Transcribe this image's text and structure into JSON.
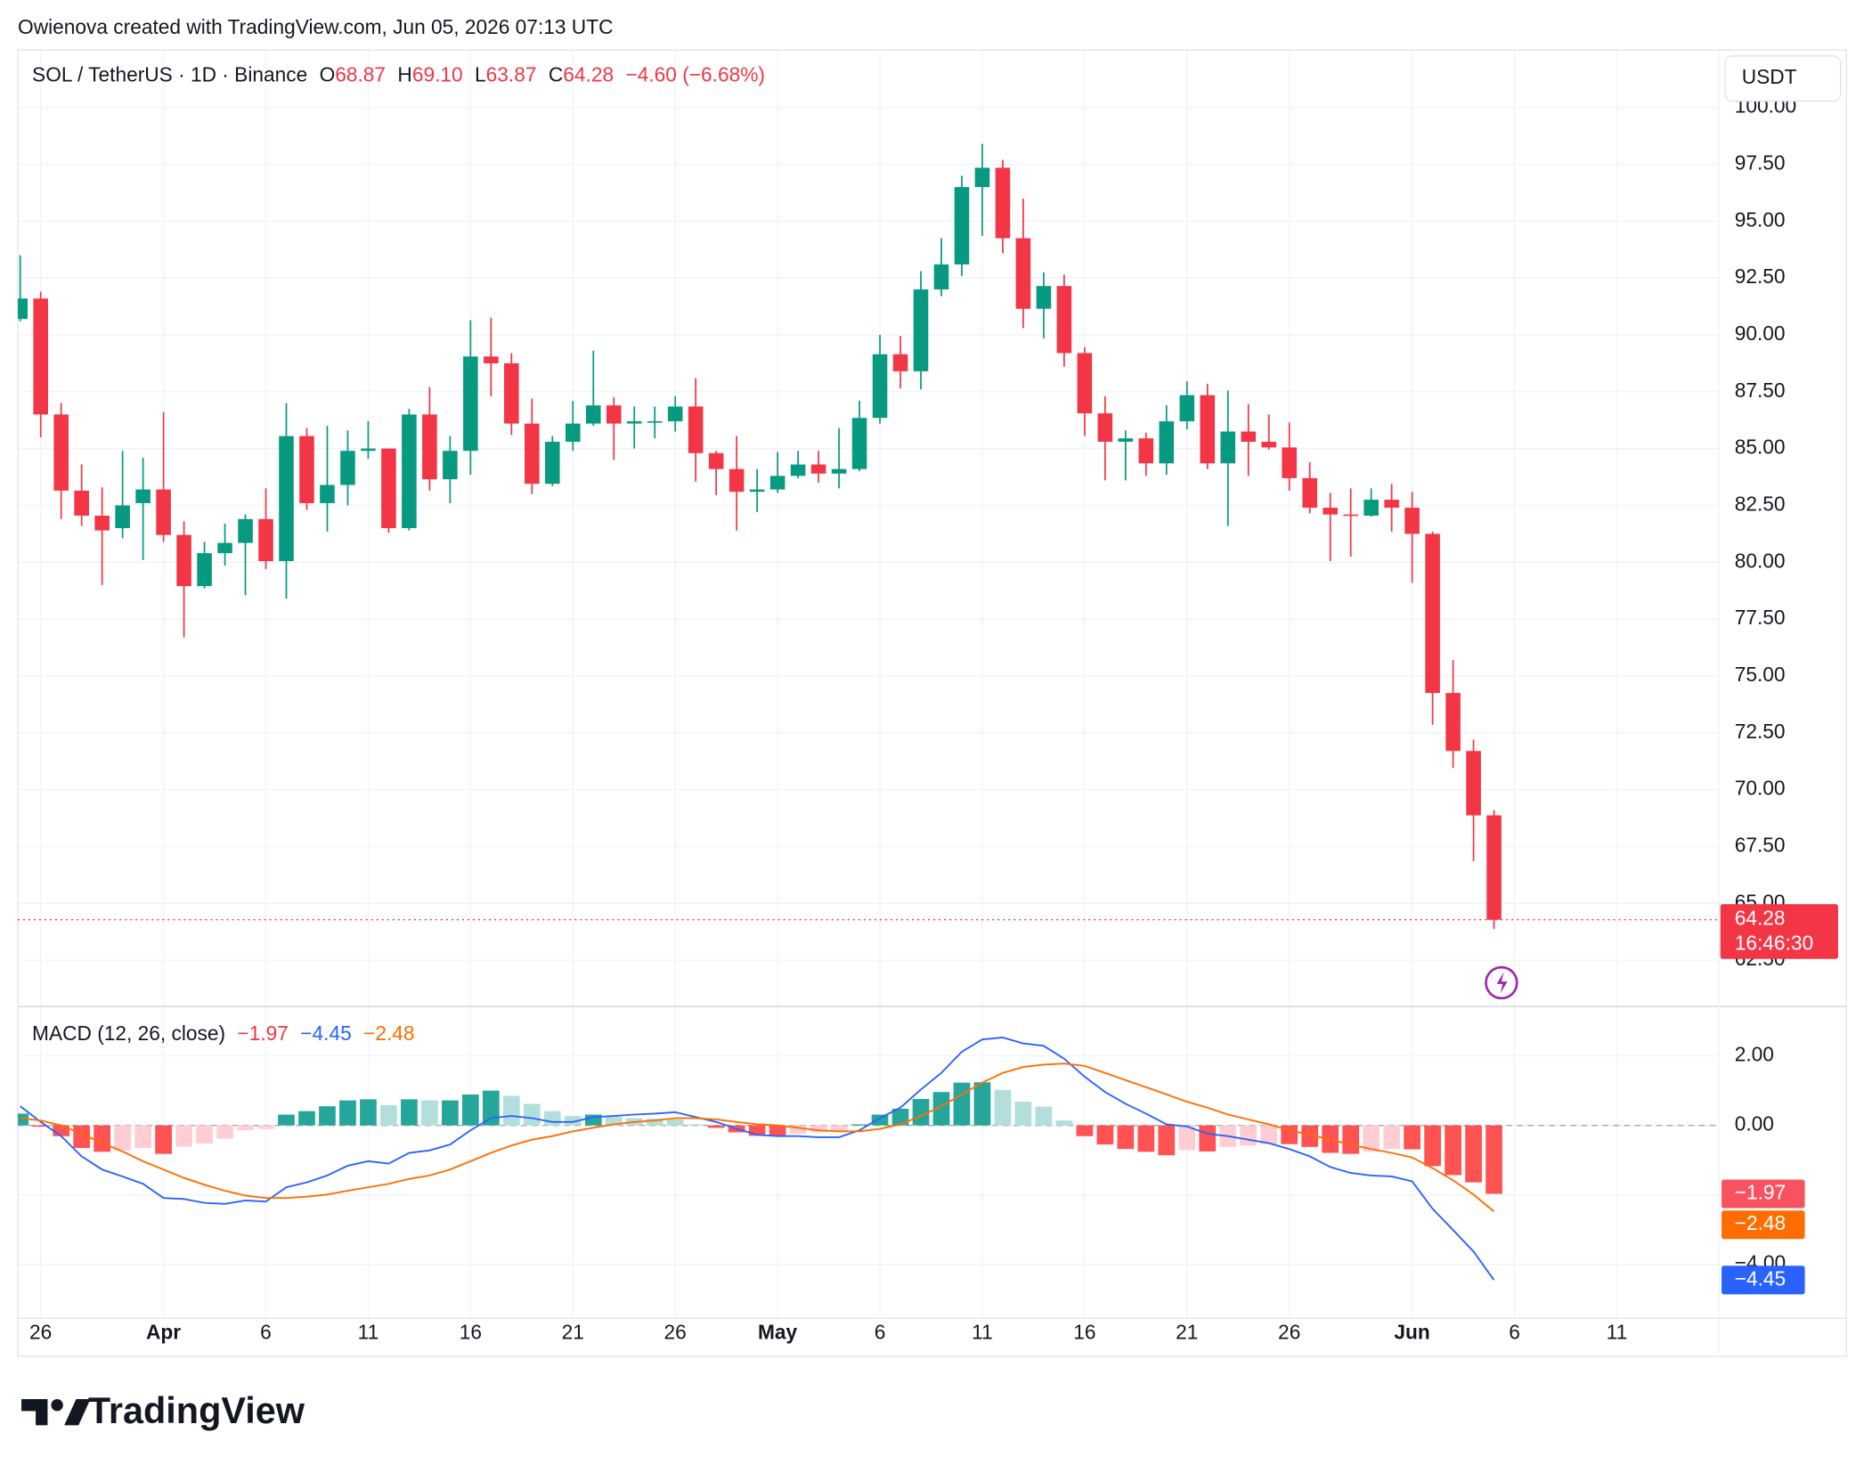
{
  "header": {
    "watermark": "Owienova created with TradingView.com, Jun 05, 2026 07:13 UTC"
  },
  "footer": {
    "brand": "TradingView"
  },
  "chart_data": [
    {
      "type": "candlestick",
      "title": "SOL / TetherUS · 1D · Binance",
      "currency": "USDT",
      "legend": {
        "o_label": "O",
        "open": "68.87",
        "h_label": "H",
        "high": "69.10",
        "l_label": "L",
        "low": "63.87",
        "c_label": "C",
        "close": "64.28",
        "change": "−4.60 (−6.68%)"
      },
      "last_price": {
        "label": "64.28",
        "countdown": "16:46:30"
      },
      "up_color": "#089981",
      "down_color": "#f23645",
      "x": [
        "2026-03-25",
        "2026-03-26",
        "2026-03-27",
        "2026-03-28",
        "2026-03-29",
        "2026-03-30",
        "2026-03-31",
        "2026-04-01",
        "2026-04-02",
        "2026-04-03",
        "2026-04-04",
        "2026-04-05",
        "2026-04-06",
        "2026-04-07",
        "2026-04-08",
        "2026-04-09",
        "2026-04-10",
        "2026-04-11",
        "2026-04-12",
        "2026-04-13",
        "2026-04-14",
        "2026-04-15",
        "2026-04-16",
        "2026-04-17",
        "2026-04-18",
        "2026-04-19",
        "2026-04-20",
        "2026-04-21",
        "2026-04-22",
        "2026-04-23",
        "2026-04-24",
        "2026-04-25",
        "2026-04-26",
        "2026-04-27",
        "2026-04-28",
        "2026-04-29",
        "2026-04-30",
        "2026-05-01",
        "2026-05-02",
        "2026-05-03",
        "2026-05-04",
        "2026-05-05",
        "2026-05-06",
        "2026-05-07",
        "2026-05-08",
        "2026-05-09",
        "2026-05-10",
        "2026-05-11",
        "2026-05-12",
        "2026-05-13",
        "2026-05-14",
        "2026-05-15",
        "2026-05-16",
        "2026-05-17",
        "2026-05-18",
        "2026-05-19",
        "2026-05-20",
        "2026-05-21",
        "2026-05-22",
        "2026-05-23",
        "2026-05-24",
        "2026-05-25",
        "2026-05-26",
        "2026-05-27",
        "2026-05-28",
        "2026-05-29",
        "2026-05-30",
        "2026-05-31",
        "2026-06-01",
        "2026-06-02",
        "2026-06-03",
        "2026-06-04",
        "2026-06-05"
      ],
      "open": [
        90.7,
        91.6,
        86.5,
        83.15,
        82.05,
        81.5,
        82.6,
        83.2,
        81.2,
        78.95,
        80.4,
        80.85,
        81.9,
        80.05,
        85.55,
        82.6,
        83.4,
        84.9,
        85.0,
        81.5,
        86.5,
        83.65,
        84.9,
        89.05,
        88.75,
        86.1,
        83.45,
        85.3,
        86.1,
        86.9,
        86.1,
        86.2,
        86.2,
        86.85,
        84.8,
        84.1,
        83.1,
        83.2,
        83.8,
        84.3,
        83.9,
        84.1,
        86.35,
        89.15,
        88.4,
        92.0,
        93.1,
        96.5,
        97.35,
        94.25,
        91.15,
        92.15,
        89.2,
        86.55,
        85.3,
        85.45,
        84.35,
        86.2,
        87.35,
        84.35,
        85.75,
        85.3,
        85.05,
        83.7,
        82.4,
        82.1,
        82.05,
        82.75,
        82.4,
        81.25,
        74.25,
        71.7,
        68.87
      ],
      "high": [
        93.5,
        91.9,
        87.0,
        84.3,
        83.3,
        84.9,
        84.6,
        86.6,
        81.8,
        80.9,
        81.7,
        82.1,
        83.25,
        87.0,
        85.9,
        86.0,
        85.8,
        86.2,
        85.0,
        86.75,
        87.7,
        85.55,
        90.65,
        90.75,
        89.2,
        87.2,
        85.55,
        87.1,
        89.3,
        87.25,
        86.85,
        86.85,
        87.3,
        88.1,
        84.9,
        85.55,
        84.1,
        84.85,
        84.9,
        84.9,
        85.9,
        87.1,
        90.0,
        89.95,
        92.8,
        94.25,
        97.0,
        98.4,
        97.7,
        96.0,
        92.75,
        92.65,
        89.45,
        87.3,
        85.8,
        85.7,
        86.9,
        87.95,
        87.85,
        87.55,
        86.95,
        86.5,
        86.15,
        84.4,
        83.05,
        83.25,
        83.25,
        83.45,
        83.1,
        81.35,
        75.7,
        72.2,
        69.1
      ],
      "low": [
        90.6,
        85.5,
        81.9,
        81.6,
        79.0,
        81.05,
        80.1,
        80.9,
        76.7,
        78.85,
        79.85,
        78.55,
        79.7,
        78.4,
        82.3,
        81.35,
        82.5,
        84.55,
        81.3,
        81.4,
        83.15,
        82.6,
        83.85,
        87.3,
        85.6,
        83.0,
        83.35,
        84.9,
        86.0,
        84.5,
        85.0,
        85.45,
        85.75,
        83.55,
        82.95,
        81.4,
        82.2,
        83.05,
        83.7,
        83.5,
        83.25,
        84.0,
        86.1,
        87.65,
        87.6,
        91.7,
        92.6,
        94.35,
        93.6,
        90.3,
        89.85,
        88.6,
        85.55,
        83.6,
        83.6,
        83.8,
        83.85,
        85.85,
        84.1,
        81.6,
        83.8,
        84.95,
        83.15,
        82.15,
        80.05,
        80.25,
        82.0,
        81.35,
        79.1,
        72.85,
        70.95,
        66.85,
        63.87
      ],
      "close": [
        91.6,
        86.5,
        83.15,
        82.05,
        81.4,
        82.5,
        83.2,
        81.2,
        78.95,
        80.4,
        80.85,
        81.9,
        80.05,
        85.55,
        82.6,
        83.4,
        84.9,
        85.0,
        81.5,
        86.5,
        83.65,
        84.9,
        89.05,
        88.75,
        86.1,
        83.45,
        85.3,
        86.1,
        86.9,
        86.1,
        86.2,
        86.2,
        86.85,
        84.8,
        84.1,
        83.1,
        83.2,
        83.8,
        84.3,
        83.9,
        84.1,
        86.35,
        89.15,
        88.4,
        92.0,
        93.1,
        96.5,
        97.35,
        94.25,
        91.15,
        92.15,
        89.2,
        86.55,
        85.3,
        85.45,
        84.35,
        86.2,
        87.35,
        84.35,
        85.75,
        85.3,
        85.05,
        83.7,
        82.4,
        82.1,
        82.05,
        82.75,
        82.4,
        81.25,
        74.25,
        71.7,
        68.87,
        64.28
      ],
      "xlim": [
        "2026-03-25",
        "2026-06-16"
      ],
      "xticks": [
        {
          "value": "2026-03-26",
          "label": "26"
        },
        {
          "value": "2026-04-01",
          "label": "Apr"
        },
        {
          "value": "2026-04-06",
          "label": "6"
        },
        {
          "value": "2026-04-11",
          "label": "11"
        },
        {
          "value": "2026-04-16",
          "label": "16"
        },
        {
          "value": "2026-04-21",
          "label": "21"
        },
        {
          "value": "2026-04-26",
          "label": "26"
        },
        {
          "value": "2026-05-01",
          "label": "May"
        },
        {
          "value": "2026-05-06",
          "label": "6"
        },
        {
          "value": "2026-05-11",
          "label": "11"
        },
        {
          "value": "2026-05-16",
          "label": "16"
        },
        {
          "value": "2026-05-21",
          "label": "21"
        },
        {
          "value": "2026-05-26",
          "label": "26"
        },
        {
          "value": "2026-06-01",
          "label": "Jun"
        },
        {
          "value": "2026-06-06",
          "label": "6"
        },
        {
          "value": "2026-06-11",
          "label": "11"
        }
      ],
      "ylim": [
        60.46,
        102.53
      ],
      "yticks": [
        {
          "value": 62.5,
          "label": "62.50"
        },
        {
          "value": 65,
          "label": "65.00"
        },
        {
          "value": 67.5,
          "label": "67.50"
        },
        {
          "value": 70,
          "label": "70.00"
        },
        {
          "value": 72.5,
          "label": "72.50"
        },
        {
          "value": 75,
          "label": "75.00"
        },
        {
          "value": 77.5,
          "label": "77.50"
        },
        {
          "value": 80,
          "label": "80.00"
        },
        {
          "value": 82.5,
          "label": "82.50"
        },
        {
          "value": 85,
          "label": "85.00"
        },
        {
          "value": 87.5,
          "label": "87.50"
        },
        {
          "value": 90,
          "label": "90.00"
        },
        {
          "value": 92.5,
          "label": "92.50"
        },
        {
          "value": 95,
          "label": "95.00"
        },
        {
          "value": 97.5,
          "label": "97.50"
        },
        {
          "value": 100,
          "label": "100.00"
        }
      ],
      "grid": true
    },
    {
      "type": "macd",
      "title": "MACD (12, 26, close)",
      "histogram": {
        "label": "−1.97",
        "label_color": "#f7525f",
        "colors": [
          "#26a69a",
          "#b2dfdb",
          "#ff5252",
          "#ffcdd2"
        ],
        "values": [
          0.34,
          -0.04,
          -0.31,
          -0.65,
          -0.76,
          -0.72,
          -0.65,
          -0.82,
          -0.61,
          -0.52,
          -0.38,
          -0.14,
          -0.1,
          0.31,
          0.41,
          0.55,
          0.72,
          0.75,
          0.58,
          0.75,
          0.72,
          0.72,
          0.89,
          1.0,
          0.85,
          0.62,
          0.41,
          0.27,
          0.31,
          0.24,
          0.21,
          0.2,
          0.17,
          0.03,
          -0.07,
          -0.2,
          -0.3,
          -0.31,
          -0.24,
          -0.2,
          -0.17,
          0.03,
          0.31,
          0.48,
          0.76,
          0.96,
          1.23,
          1.24,
          1.02,
          0.68,
          0.54,
          0.14,
          -0.31,
          -0.55,
          -0.68,
          -0.76,
          -0.86,
          -0.71,
          -0.75,
          -0.62,
          -0.58,
          -0.54,
          -0.54,
          -0.62,
          -0.79,
          -0.82,
          -0.76,
          -0.68,
          -0.69,
          -1.17,
          -1.43,
          -1.64,
          -1.97
        ]
      },
      "series": [
        {
          "color": "#2962ff",
          "label": "−4.45",
          "values": [
            0.55,
            0.1,
            -0.31,
            -0.89,
            -1.27,
            -1.47,
            -1.68,
            -2.09,
            -2.12,
            -2.23,
            -2.26,
            -2.16,
            -2.19,
            -1.78,
            -1.64,
            -1.44,
            -1.16,
            -1.03,
            -1.1,
            -0.79,
            -0.72,
            -0.55,
            -0.14,
            0.21,
            0.27,
            0.21,
            0.1,
            0.1,
            0.24,
            0.27,
            0.31,
            0.34,
            0.38,
            0.24,
            0.1,
            -0.1,
            -0.27,
            -0.31,
            -0.31,
            -0.34,
            -0.34,
            -0.14,
            0.21,
            0.51,
            1.03,
            1.51,
            2.12,
            2.47,
            2.53,
            2.36,
            2.29,
            1.92,
            1.4,
            0.96,
            0.62,
            0.34,
            0.03,
            -0.03,
            -0.24,
            -0.31,
            -0.41,
            -0.51,
            -0.68,
            -0.89,
            -1.2,
            -1.37,
            -1.44,
            -1.47,
            -1.61,
            -2.4,
            -3.01,
            -3.63,
            -4.45
          ]
        },
        {
          "color": "#ff6d00",
          "label": "−2.48",
          "values": [
            0.21,
            0.14,
            0.0,
            -0.24,
            -0.51,
            -0.75,
            -1.03,
            -1.27,
            -1.51,
            -1.71,
            -1.88,
            -2.02,
            -2.09,
            -2.09,
            -2.05,
            -1.99,
            -1.88,
            -1.78,
            -1.68,
            -1.54,
            -1.44,
            -1.27,
            -1.03,
            -0.79,
            -0.58,
            -0.41,
            -0.31,
            -0.17,
            -0.07,
            0.03,
            0.1,
            0.14,
            0.21,
            0.21,
            0.17,
            0.1,
            0.03,
            0.0,
            -0.07,
            -0.14,
            -0.17,
            -0.17,
            -0.1,
            0.03,
            0.27,
            0.55,
            0.89,
            1.23,
            1.51,
            1.68,
            1.75,
            1.78,
            1.71,
            1.51,
            1.3,
            1.1,
            0.89,
            0.68,
            0.51,
            0.31,
            0.17,
            0.03,
            -0.14,
            -0.27,
            -0.41,
            -0.55,
            -0.68,
            -0.79,
            -0.92,
            -1.23,
            -1.58,
            -1.99,
            -2.48
          ]
        }
      ],
      "ylim": [
        -5.55,
        3.42
      ],
      "yticks": [
        {
          "value": 2,
          "label": "2.00"
        },
        {
          "value": 0,
          "label": "0.00"
        },
        {
          "value": -2,
          "label": "−2.00"
        },
        {
          "value": -4,
          "label": "−4.00"
        }
      ],
      "zero_line": true,
      "grid": true
    }
  ]
}
